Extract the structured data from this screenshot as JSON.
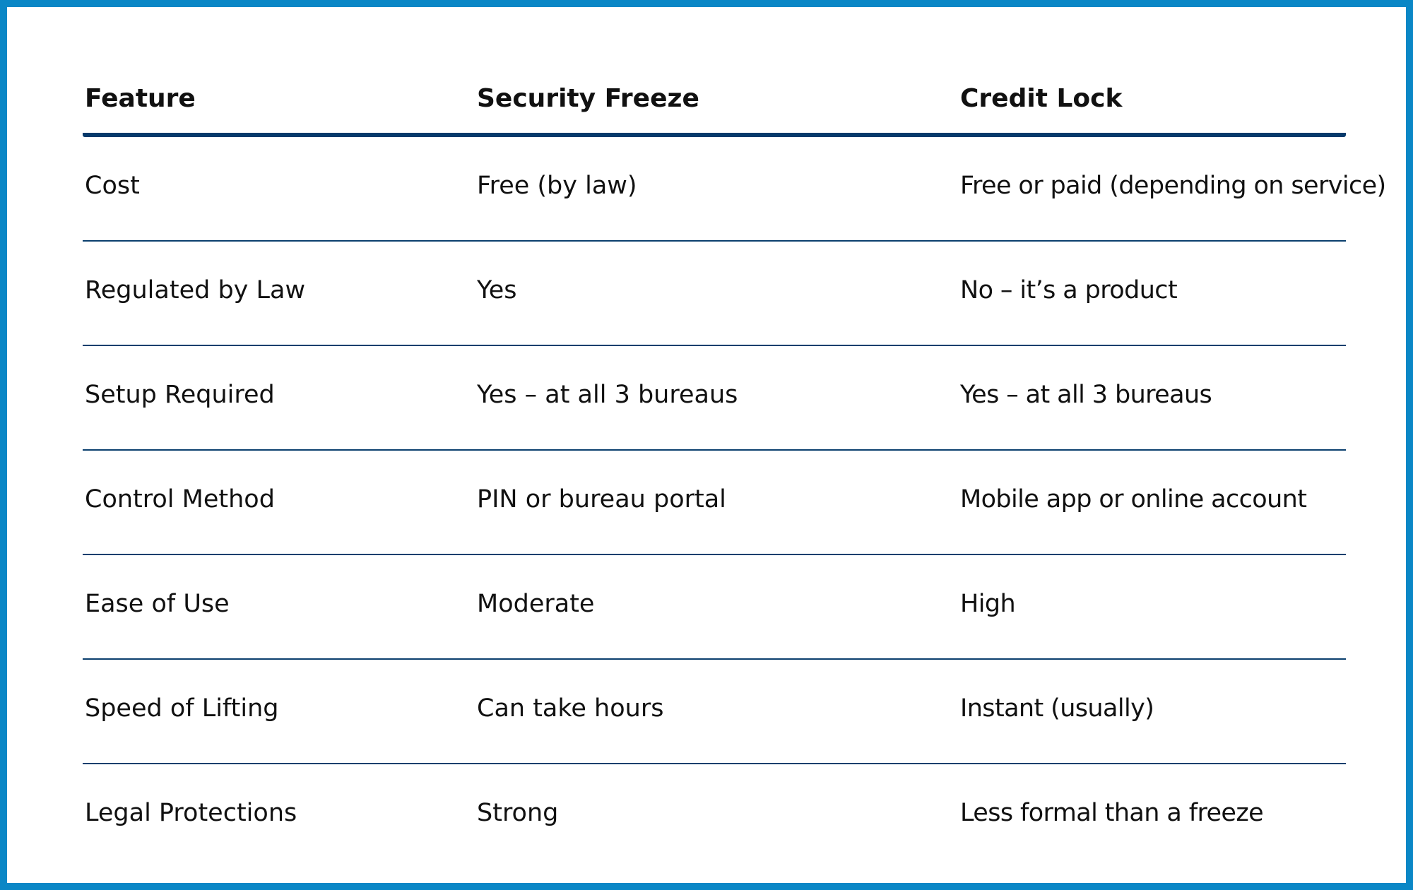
{
  "table": {
    "headers": [
      "Feature",
      "Security Freeze",
      "Credit Lock"
    ],
    "rows": [
      [
        "Cost",
        "Free (by law)",
        "Free or paid (depending on service)"
      ],
      [
        "Regulated by Law",
        "Yes",
        "No – it’s a product"
      ],
      [
        "Setup Required",
        "Yes – at all 3 bureaus",
        "Yes – at all 3 bureaus"
      ],
      [
        "Control Method",
        "PIN or bureau portal",
        "Mobile app or online account"
      ],
      [
        "Ease of Use",
        "Moderate",
        "High"
      ],
      [
        "Speed of Lifting",
        "Can take hours",
        "Instant (usually)"
      ],
      [
        "Legal Protections",
        "Strong",
        "Less formal than a freeze"
      ]
    ]
  },
  "colors": {
    "frame_border": "#0a87c6",
    "header_rule": "#063a6b",
    "row_rule": "#0b3f6e"
  }
}
